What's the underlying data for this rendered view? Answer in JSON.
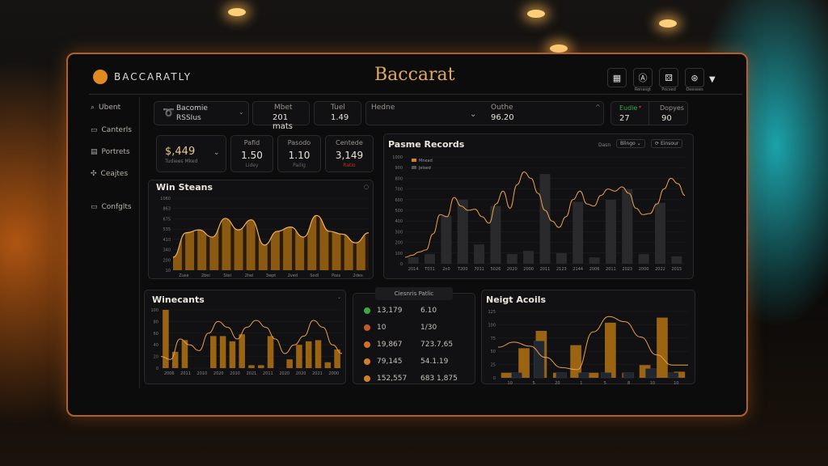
{
  "app": {
    "brand": "BACCARATLY",
    "title": "Baccarat"
  },
  "header_icons": [
    {
      "name": "calendar",
      "glyph": "▦",
      "label": ""
    },
    {
      "name": "account",
      "glyph": "Ⓐ",
      "label": "Renasgt"
    },
    {
      "name": "dice",
      "glyph": "⚄",
      "label": "Pocsed"
    },
    {
      "name": "settings",
      "glyph": "⊛",
      "label": "Deesees"
    }
  ],
  "sidebar": [
    {
      "icon": "search",
      "glyph": "⌕",
      "label": "Ubent"
    },
    {
      "icon": "cards",
      "glyph": "▭",
      "label": "Canterls"
    },
    {
      "icon": "reports",
      "glyph": "▤",
      "label": "Portrets"
    },
    {
      "icon": "chips",
      "glyph": "✣",
      "label": "Ceajtes"
    },
    {
      "icon": "config",
      "glyph": "▭",
      "label": "Confglts"
    }
  ],
  "top_cards": {
    "select": {
      "line1": "Bacomie",
      "line2": "RSSIus"
    },
    "mbet": {
      "label": "Mbet",
      "value": "201 mats"
    },
    "tuel": {
      "label": "Tuel",
      "value": "1.49"
    },
    "hedne": {
      "label": "Hedne",
      "sub_label": "Outhe",
      "value": "96.20"
    },
    "eudie": {
      "label": "Eudie",
      "value": "27"
    },
    "dopyes": {
      "label": "Dopyes",
      "value": "90"
    }
  },
  "stats": {
    "main": {
      "value": "$,449",
      "sub": "Tudiees Mked"
    },
    "items": [
      {
        "label": "Pafid",
        "value": "1.50",
        "sub": "Lidey"
      },
      {
        "label": "Pasodo",
        "value": "1.10",
        "sub": "Pailig"
      },
      {
        "label": "Centede",
        "value": "3,149",
        "sub": "Ratio"
      }
    ]
  },
  "colors": {
    "accent": "#c98a2a",
    "bar": "#9a6412",
    "gray_bar": "#2c2c2e",
    "green": "#3aa844",
    "red": "#c0302a"
  },
  "records_controls": {
    "range_label": "Dasn",
    "select": "Blingo",
    "refresh": "Einsour"
  },
  "table": {
    "title": "Ciesnris Patlic",
    "rows": [
      {
        "color": "#3aa844",
        "a": "13,179",
        "b": "6.10"
      },
      {
        "color": "#c05a2a",
        "a": "10",
        "b": "1/30"
      },
      {
        "color": "#d0702a",
        "a": "19,867",
        "b": "723.7,65"
      },
      {
        "color": "#d0802a",
        "a": "79,145",
        "b": "54.1.19"
      },
      {
        "color": "#d0802a",
        "a": "152,557",
        "b": "683 1,875"
      }
    ]
  },
  "chart_data": [
    {
      "id": "win",
      "type": "area",
      "title": "Win Steans",
      "ylim": [
        0,
        1000
      ],
      "yticks": [
        "10",
        "200",
        "340",
        "410",
        "535",
        "675",
        "863",
        "1060"
      ],
      "xticks": [
        "Zuse",
        "2bei",
        "Stel",
        "2hel",
        "3wpt",
        "2ved",
        "Sodl",
        "Poss",
        "2des"
      ],
      "values": [
        180,
        520,
        560,
        460,
        720,
        560,
        700,
        350,
        540,
        600,
        460,
        760,
        540,
        500,
        380,
        520
      ],
      "bars": [
        180,
        520,
        480,
        460,
        720,
        560,
        700,
        350,
        540,
        600,
        460,
        760,
        540,
        520,
        380,
        520
      ]
    },
    {
      "id": "records",
      "type": "line+bar",
      "title": "Pasme Records",
      "ylim": [
        0,
        1000
      ],
      "yticks": [
        "0",
        "100",
        "200",
        "300",
        "400",
        "500",
        "600",
        "700",
        "800",
        "900",
        "1000"
      ],
      "legend": [
        "Mnead",
        "Jelsed"
      ],
      "xticks": [
        "2014",
        "T031",
        "2n0",
        "T200",
        "7011",
        "5026",
        "2020",
        "2000",
        "2011",
        "2123",
        "2144",
        "2006",
        "2011",
        "2023",
        "2000",
        "2022",
        "2015"
      ],
      "bars": [
        60,
        90,
        450,
        600,
        180,
        540,
        90,
        120,
        840,
        100,
        580,
        60,
        600,
        700,
        90,
        570,
        70
      ],
      "line": [
        60,
        80,
        110,
        130,
        280,
        460,
        440,
        620,
        540,
        500,
        510,
        440,
        380,
        560,
        680,
        520,
        740,
        860,
        800,
        660,
        500,
        400,
        340,
        440,
        600,
        680,
        560,
        540,
        640,
        700,
        680,
        720,
        660,
        520,
        460,
        470,
        560,
        700,
        800,
        750,
        640
      ]
    },
    {
      "id": "wine",
      "type": "line+bar",
      "title": "Winecants",
      "ylim": [
        0,
        100
      ],
      "yticks": [
        "0",
        "20",
        "40",
        "60",
        "80",
        "100"
      ],
      "xticks": [
        "2006",
        "2011",
        "2010",
        "2020",
        "2010",
        "2021",
        "2011",
        "2020",
        "2020",
        "2021",
        "2000"
      ],
      "bars": [
        100,
        28,
        48,
        0,
        0,
        55,
        55,
        46,
        58,
        5,
        5,
        55,
        0,
        15,
        40,
        46,
        48,
        10,
        32
      ],
      "line": [
        20,
        15,
        50,
        40,
        30,
        60,
        80,
        70,
        50,
        70,
        82,
        70,
        50,
        25,
        40,
        55,
        82,
        70,
        40,
        25
      ]
    },
    {
      "id": "neigt",
      "type": "line+bar",
      "title": "Neigt Acoils",
      "ylim": [
        0,
        100
      ],
      "yticks": [
        "0",
        "25",
        "50",
        "75",
        "100",
        "125"
      ],
      "xticks": [
        "10",
        "5",
        "20",
        "1",
        "5",
        "8",
        "10",
        "10"
      ],
      "bars": [
        10,
        58,
        92,
        10,
        64,
        10,
        108,
        10,
        25,
        118,
        12
      ],
      "gray": [
        10,
        72,
        10,
        10,
        10,
        10,
        18,
        10
      ],
      "line": [
        60,
        70,
        62,
        40,
        20,
        16,
        90,
        120,
        110,
        80,
        45,
        25,
        25
      ]
    }
  ]
}
